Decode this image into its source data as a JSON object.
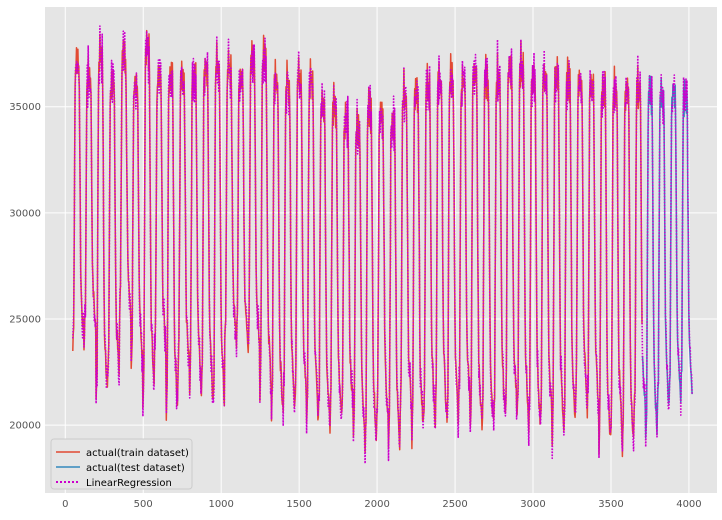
{
  "chart_data": {
    "type": "line",
    "title": "",
    "xlabel": "",
    "ylabel": "",
    "xlim": [
      -130,
      4180
    ],
    "ylim": [
      16800,
      39700
    ],
    "grid": true,
    "background": "#e5e5e5",
    "legend_position": "lower-left",
    "x_ticks": [
      0,
      500,
      1000,
      1500,
      2000,
      2500,
      3000,
      3500,
      4000
    ],
    "y_ticks": [
      20000,
      25000,
      30000,
      35000
    ],
    "x_tick_labels": [
      "0",
      "500",
      "1000",
      "1500",
      "2000",
      "2500",
      "3000",
      "3500",
      "4000"
    ],
    "y_tick_labels": [
      "20000",
      "25000",
      "30000",
      "35000"
    ],
    "period": 75,
    "train_end": 3700,
    "test_start": 3700,
    "x_start": 48,
    "x_end": 4020,
    "cycle_peaks": [
      37900,
      37200,
      38500,
      37000,
      38200,
      37000,
      38800,
      37100,
      37400,
      37300,
      37300,
      37600,
      38000,
      37700,
      37300,
      38100,
      38400,
      37200,
      37200,
      37400,
      37200,
      36200,
      36000,
      35300,
      35000,
      35800,
      35300,
      35000,
      36600,
      36800,
      36900,
      37200,
      37400,
      37100,
      37500,
      37300,
      37500,
      37800,
      38000,
      37500,
      37600,
      37500,
      37400,
      37300,
      37200,
      37000,
      36900,
      36800,
      36800,
      36700,
      36500,
      36400,
      36300
    ],
    "cycle_troughs": [
      23500,
      24200,
      21000,
      22000,
      25000,
      22800,
      21200,
      23200,
      20500,
      22500,
      21700,
      21200,
      20900,
      24000,
      23800,
      23500,
      21500,
      20300,
      20800,
      21100,
      20200,
      20100,
      20000,
      20400,
      19500,
      18900,
      20000,
      18700,
      20500,
      19300,
      20100,
      20200,
      19800,
      20900,
      19800,
      19600,
      19900,
      20600,
      20100,
      19600,
      20000,
      19500,
      19500,
      21000,
      20500,
      19000,
      19400,
      18700,
      20300,
      19200,
      20800,
      21200,
      21400
    ],
    "series": [
      {
        "name": "actual(train dataset)",
        "color": "#e24a33",
        "style": "solid"
      },
      {
        "name": "actual(test dataset)",
        "color": "#348abd",
        "style": "solid"
      },
      {
        "name": "LinearRegression",
        "color": "#cc00cc",
        "style": "dotted"
      }
    ]
  }
}
